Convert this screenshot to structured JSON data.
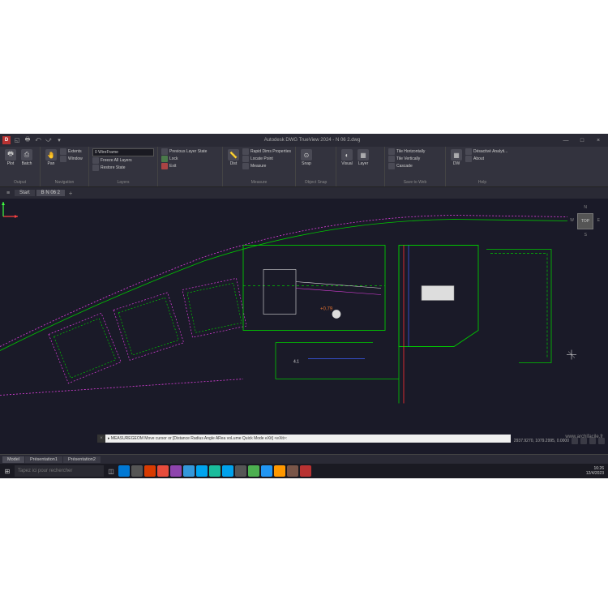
{
  "title": "Autodesk DWG TrueView 2024 - N 06 2.dwg",
  "logo": "D",
  "qat": [
    "◱",
    "🖶",
    "⤺",
    "⤻",
    "▾"
  ],
  "win": {
    "min": "—",
    "max": "□",
    "close": "×"
  },
  "ribbon": {
    "panels": [
      {
        "label": "Output",
        "buttons": [
          {
            "icon": "🖶",
            "text": "Plot"
          },
          {
            "icon": "⎙",
            "text": "Batch"
          }
        ],
        "rows": []
      },
      {
        "label": "Navigation",
        "buttons": [
          {
            "icon": "🤚",
            "text": "Pan"
          }
        ],
        "rows": [
          [
            "⊕",
            "Extents"
          ],
          [
            "◰",
            "Window"
          ]
        ]
      },
      {
        "label": "Layers",
        "buttons": [],
        "rows": [
          [
            "",
            "0 WireFrame"
          ],
          [
            "",
            "Freeze All Layers"
          ],
          [
            "",
            "Restore State"
          ]
        ],
        "dropdown": "0 WireFrame"
      },
      {
        "label": "",
        "buttons": [],
        "rows": [
          [
            "",
            "Previous Layer State"
          ],
          [
            "",
            "Lock"
          ],
          [
            "",
            "Exit"
          ]
        ],
        "dropdown": ""
      },
      {
        "label": "Measure",
        "buttons": [
          {
            "icon": "📏",
            "text": "Dist"
          }
        ],
        "rows": [
          [
            "",
            "Rapid Dims Properties"
          ],
          [
            "",
            "Locate Point"
          ],
          [
            "",
            "Measure"
          ]
        ]
      },
      {
        "label": "Object Snap",
        "buttons": [
          {
            "icon": "⊙",
            "text": "Snap"
          }
        ],
        "rows": []
      },
      {
        "label": "",
        "buttons": [
          {
            "icon": "◐",
            "text": "Visual"
          },
          {
            "icon": "▦",
            "text": "Layer"
          }
        ],
        "rows": []
      },
      {
        "label": "Save to Web",
        "buttons": [],
        "rows": [
          [
            "",
            "Tile Horizontally"
          ],
          [
            "",
            "Tile Vertically"
          ],
          [
            "",
            "Cascade"
          ]
        ]
      },
      {
        "label": "Help",
        "buttons": [
          {
            "icon": "▦",
            "text": "DW"
          }
        ],
        "rows": [
          [
            "",
            "Désactivé Analyti..."
          ],
          [
            "",
            "About"
          ]
        ]
      }
    ]
  },
  "filetabs": {
    "start": "Start",
    "current": "B N 06 2",
    "add": "+"
  },
  "compass": {
    "face": "TOP",
    "n": "N",
    "e": "E",
    "w": "W",
    "s": "S"
  },
  "cmd": {
    "close": "×",
    "text": "▸ MEASUREGEOM Move cursor or [Distance Radius Angle ARea voLume Quick Mode eXit] <eXit>:"
  },
  "layouts": [
    "Model",
    "Présentation1",
    "Présentation2"
  ],
  "coords": "2937.9270, 1079.2995, 0.0000",
  "search": "Tapez ici pour rechercher",
  "clock": {
    "time": "16:26",
    "date": "12/4/2023"
  },
  "watermark": "www.archifacile.fr",
  "taskapps": [
    "#0078d4",
    "#555",
    "#d83b01",
    "#e74c3c",
    "#8e44ad",
    "#3498db",
    "#00a4ef",
    "#1abc9c",
    "#00a2ed",
    "#555",
    "#4caf50",
    "#2196f3",
    "#ff9800",
    "#795548",
    "#b83232"
  ],
  "drawing": {
    "bg": "#1a1a28",
    "green": "#00c800",
    "magenta": "#e040e0",
    "red": "#ff3030",
    "blue": "#4060ff",
    "cyan": "#00d0d0",
    "white": "#dddddd",
    "yellow": "#e0c000",
    "orange": "#e07030",
    "dash": "3,3"
  }
}
